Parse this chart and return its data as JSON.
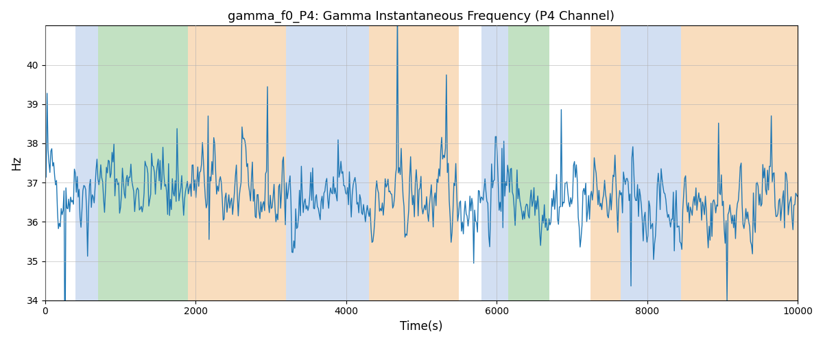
{
  "title": "gamma_f0_P4: Gamma Instantaneous Frequency (P4 Channel)",
  "xlabel": "Time(s)",
  "ylabel": "Hz",
  "xlim": [
    0,
    10000
  ],
  "ylim": [
    34,
    41
  ],
  "yticks": [
    34,
    35,
    36,
    37,
    38,
    39,
    40
  ],
  "xticks": [
    0,
    2000,
    4000,
    6000,
    8000,
    10000
  ],
  "line_color": "#1f77b4",
  "line_width": 1.0,
  "bg_color": "#ffffff",
  "grid_color": "#b0b0b0",
  "bands": [
    {
      "start": 400,
      "end": 700,
      "color": "#aec6e8",
      "alpha": 0.55
    },
    {
      "start": 700,
      "end": 1900,
      "color": "#90c990",
      "alpha": 0.55
    },
    {
      "start": 1900,
      "end": 3200,
      "color": "#f5c18a",
      "alpha": 0.55
    },
    {
      "start": 3200,
      "end": 3550,
      "color": "#aec6e8",
      "alpha": 0.55
    },
    {
      "start": 3550,
      "end": 4300,
      "color": "#aec6e8",
      "alpha": 0.55
    },
    {
      "start": 4300,
      "end": 5500,
      "color": "#f5c18a",
      "alpha": 0.55
    },
    {
      "start": 5500,
      "end": 5800,
      "color": "#ffffff",
      "alpha": 0.0
    },
    {
      "start": 5800,
      "end": 6150,
      "color": "#aec6e8",
      "alpha": 0.55
    },
    {
      "start": 6150,
      "end": 6700,
      "color": "#90c990",
      "alpha": 0.55
    },
    {
      "start": 6700,
      "end": 7250,
      "color": "#ffffff",
      "alpha": 0.0
    },
    {
      "start": 7250,
      "end": 7650,
      "color": "#f5c18a",
      "alpha": 0.55
    },
    {
      "start": 7650,
      "end": 8450,
      "color": "#aec6e8",
      "alpha": 0.55
    },
    {
      "start": 8450,
      "end": 10000,
      "color": "#f5c18a",
      "alpha": 0.55
    }
  ],
  "seed": 42,
  "n_points": 800,
  "base_freq": 36.5,
  "noise_std": 0.55,
  "spike_prob": 0.04,
  "spike_scale": 1.2,
  "figsize": [
    12.0,
    5.0
  ],
  "dpi": 100
}
